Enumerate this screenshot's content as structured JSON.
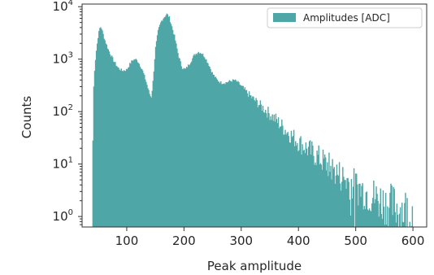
{
  "chart_data": {
    "type": "bar",
    "subtype": "histogram",
    "title": "",
    "xlabel": "Peak amplitude",
    "ylabel": "Counts",
    "xlim": [
      22,
      624
    ],
    "ylim_log10": [
      -0.2,
      4.05
    ],
    "y_scale": "log",
    "grid": false,
    "legend_position": "top-right",
    "bar_color": "#4ea6a6",
    "x_ticks": [
      {
        "value": 100,
        "label": "100"
      },
      {
        "value": 200,
        "label": "200"
      },
      {
        "value": 300,
        "label": "300"
      },
      {
        "value": 400,
        "label": "400"
      },
      {
        "value": 500,
        "label": "500"
      },
      {
        "value": 600,
        "label": "600"
      }
    ],
    "y_ticks": [
      {
        "exp": 0,
        "base": "10",
        "sup": "0"
      },
      {
        "exp": 1,
        "base": "10",
        "sup": "1"
      },
      {
        "exp": 2,
        "base": "10",
        "sup": "2"
      },
      {
        "exp": 3,
        "base": "10",
        "sup": "3"
      },
      {
        "exp": 4,
        "base": "10",
        "sup": "4"
      }
    ],
    "series": [
      {
        "name": "Amplitudes [ADC]",
        "envelope": [
          [
            40,
            -0.5
          ],
          [
            41,
            2.1
          ],
          [
            43,
            2.7
          ],
          [
            46,
            3.1
          ],
          [
            50,
            3.45
          ],
          [
            53,
            3.6
          ],
          [
            55,
            3.62
          ],
          [
            58,
            3.5
          ],
          [
            62,
            3.35
          ],
          [
            67,
            3.2
          ],
          [
            72,
            3.08
          ],
          [
            78,
            2.95
          ],
          [
            85,
            2.83
          ],
          [
            92,
            2.78
          ],
          [
            100,
            2.8
          ],
          [
            105,
            2.9
          ],
          [
            110,
            2.98
          ],
          [
            115,
            3.0
          ],
          [
            120,
            2.95
          ],
          [
            127,
            2.8
          ],
          [
            133,
            2.6
          ],
          [
            138,
            2.4
          ],
          [
            141,
            2.3
          ],
          [
            143,
            2.28
          ],
          [
            146,
            2.6
          ],
          [
            150,
            3.2
          ],
          [
            155,
            3.55
          ],
          [
            160,
            3.72
          ],
          [
            165,
            3.8
          ],
          [
            170,
            3.86
          ],
          [
            174,
            3.8
          ],
          [
            178,
            3.65
          ],
          [
            183,
            3.45
          ],
          [
            190,
            3.08
          ],
          [
            196,
            2.85
          ],
          [
            202,
            2.8
          ],
          [
            210,
            2.92
          ],
          [
            218,
            3.08
          ],
          [
            225,
            3.14
          ],
          [
            230,
            3.12
          ],
          [
            236,
            3.05
          ],
          [
            243,
            2.9
          ],
          [
            250,
            2.72
          ],
          [
            258,
            2.6
          ],
          [
            265,
            2.55
          ],
          [
            272,
            2.55
          ],
          [
            280,
            2.58
          ],
          [
            288,
            2.6
          ],
          [
            295,
            2.55
          ],
          [
            305,
            2.42
          ],
          [
            320,
            2.25
          ],
          [
            340,
            2.05
          ],
          [
            360,
            1.85
          ],
          [
            380,
            1.62
          ],
          [
            400,
            1.42
          ],
          [
            420,
            1.25
          ],
          [
            440,
            1.08
          ],
          [
            460,
            0.9
          ],
          [
            480,
            0.72
          ],
          [
            500,
            0.58
          ],
          [
            520,
            0.45
          ],
          [
            540,
            0.32
          ],
          [
            560,
            0.22
          ],
          [
            580,
            0.15
          ],
          [
            600,
            0.08
          ]
        ]
      }
    ]
  }
}
